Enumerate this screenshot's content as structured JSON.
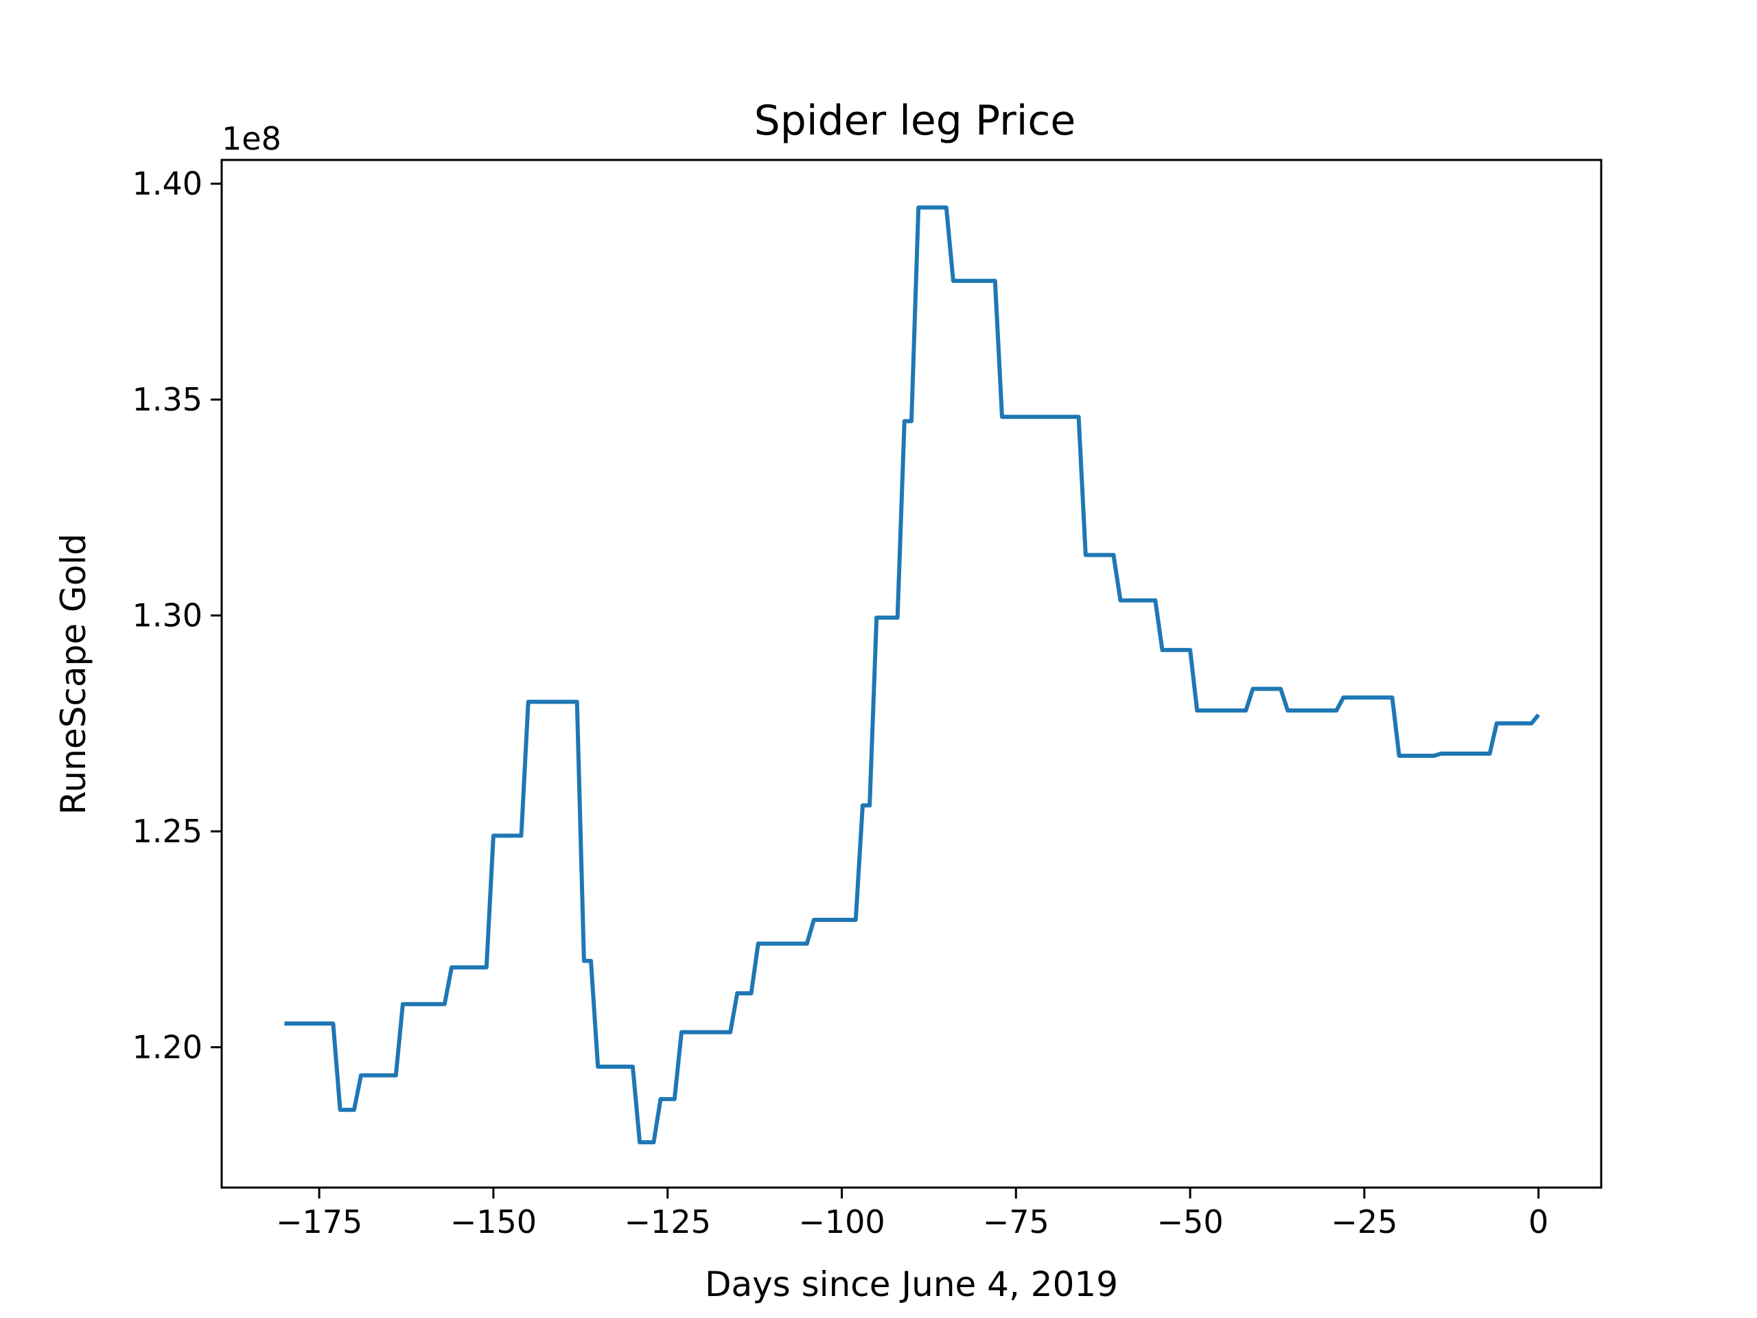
{
  "chart_data": {
    "type": "line",
    "title": "Spider leg Price",
    "xlabel": "Days since June 4, 2019",
    "ylabel": "RuneScape Gold",
    "y_offset_text": "1e8",
    "xlim": [
      -189,
      9
    ],
    "ylim": [
      1.1675,
      1.4055
    ],
    "y_scale_multiplier": 100000000,
    "x_ticks": [
      -175,
      -150,
      -125,
      -100,
      -75,
      -50,
      -25,
      0
    ],
    "x_tick_labels": [
      "−175",
      "−150",
      "−125",
      "−100",
      "−75",
      "−50",
      "−25",
      "0"
    ],
    "y_ticks": [
      1.2,
      1.25,
      1.3,
      1.35,
      1.4
    ],
    "y_tick_labels": [
      "1.20",
      "1.25",
      "1.30",
      "1.35",
      "1.40"
    ],
    "grid": false,
    "color": "#1f77b4",
    "series": [
      {
        "x": [
          -180,
          -175,
          -174,
          -173,
          -172,
          -171,
          -170,
          -169,
          -165,
          -164,
          -163,
          -162,
          -161,
          -157,
          -156,
          -155,
          -152,
          -151,
          -150,
          -147,
          -146,
          -145,
          -144,
          -139,
          -138,
          -137,
          -136,
          -135,
          -134,
          -131,
          -130,
          -129,
          -128,
          -127,
          -126,
          -125,
          -124,
          -123,
          -122,
          -121,
          -120,
          -116,
          -115,
          -114,
          -113,
          -112,
          -111,
          -110,
          -109,
          -105,
          -104,
          -103,
          -99,
          -98,
          -97,
          -96,
          -95,
          -94,
          -93,
          -92,
          -91,
          -90,
          -89,
          -88,
          -87,
          -86,
          -85,
          -84,
          -83,
          -79,
          -78,
          -77,
          -76,
          -70,
          -66,
          -65,
          -64,
          -61,
          -60,
          -59,
          -55,
          -54,
          -53,
          -50,
          -49,
          -48,
          -42,
          -41,
          -40,
          -37,
          -36,
          -35,
          -30,
          -29,
          -28,
          -22,
          -21,
          -20,
          -16,
          -15,
          -14,
          -8,
          -7,
          -6,
          -2,
          -1,
          0
        ],
        "y": [
          1.2055,
          1.2055,
          1.2055,
          1.2055,
          1.1855,
          1.1855,
          1.1855,
          1.1935,
          1.1935,
          1.1935,
          1.21,
          1.21,
          1.21,
          1.21,
          1.2185,
          1.2185,
          1.2185,
          1.2185,
          1.249,
          1.249,
          1.249,
          1.28,
          1.28,
          1.28,
          1.28,
          1.22,
          1.22,
          1.1955,
          1.1955,
          1.1955,
          1.1955,
          1.178,
          1.178,
          1.178,
          1.188,
          1.188,
          1.188,
          1.2035,
          1.2035,
          1.2035,
          1.2035,
          1.2035,
          1.2125,
          1.2125,
          1.2125,
          1.224,
          1.224,
          1.224,
          1.224,
          1.224,
          1.2295,
          1.2295,
          1.2295,
          1.2295,
          1.256,
          1.256,
          1.2995,
          1.2995,
          1.2995,
          1.2995,
          1.345,
          1.345,
          1.3945,
          1.3945,
          1.3945,
          1.3945,
          1.3945,
          1.3775,
          1.3775,
          1.3775,
          1.3775,
          1.346,
          1.346,
          1.346,
          1.346,
          1.314,
          1.314,
          1.314,
          1.3035,
          1.3035,
          1.3035,
          1.292,
          1.292,
          1.292,
          1.278,
          1.278,
          1.278,
          1.283,
          1.283,
          1.283,
          1.278,
          1.278,
          1.278,
          1.278,
          1.281,
          1.281,
          1.281,
          1.2675,
          1.2675,
          1.2675,
          1.268,
          1.268,
          1.268,
          1.275,
          1.275,
          1.275,
          1.277
        ]
      }
    ]
  }
}
